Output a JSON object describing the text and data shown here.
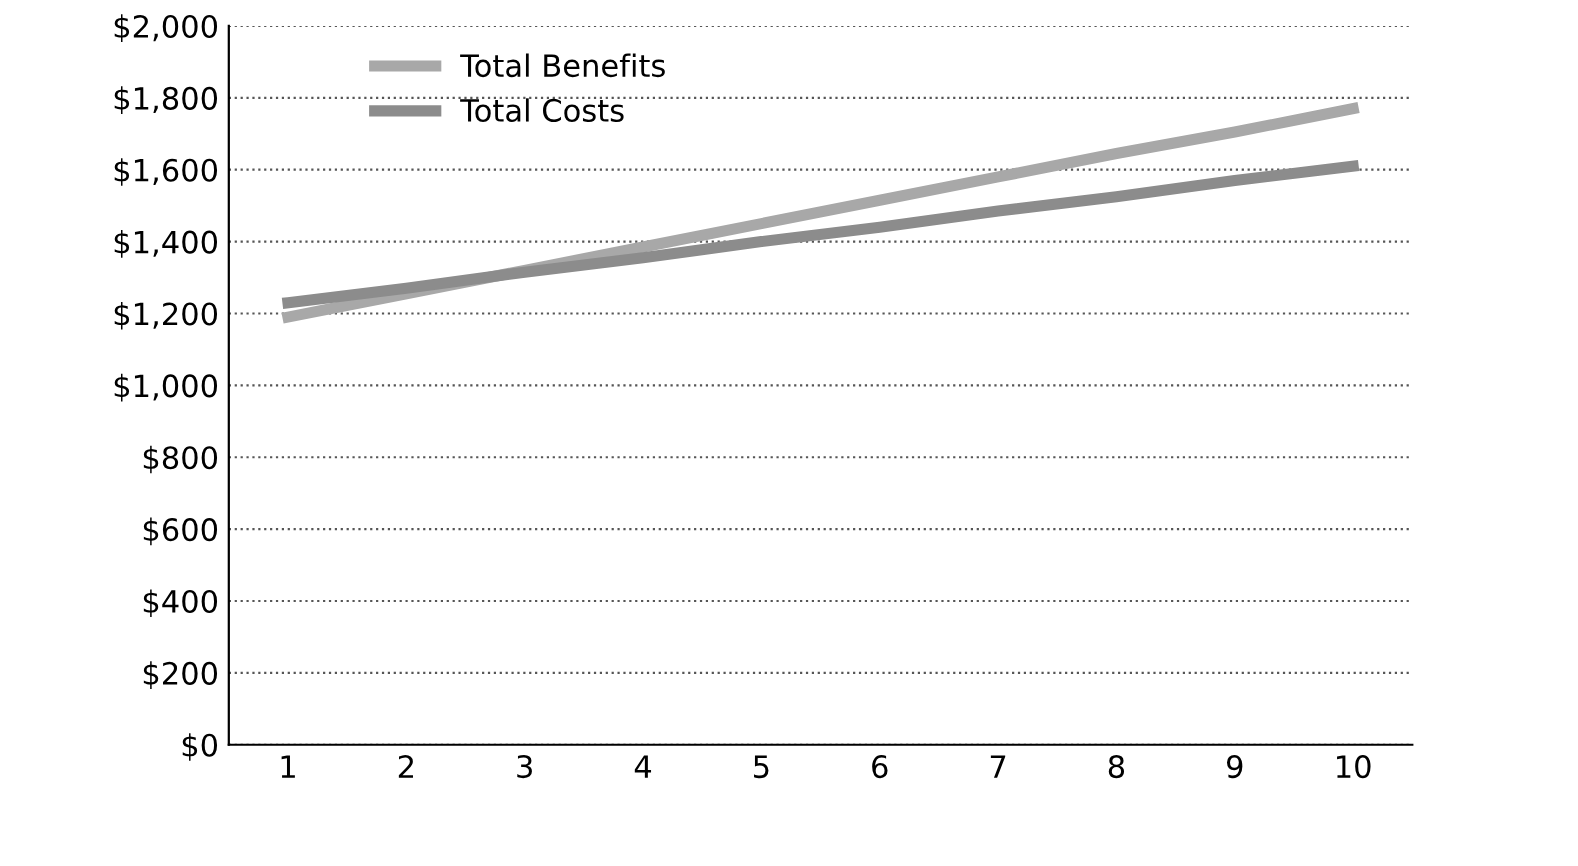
{
  "chart_data": {
    "type": "line",
    "categories": [
      "1",
      "2",
      "3",
      "4",
      "5",
      "6",
      "7",
      "8",
      "9",
      "10"
    ],
    "series": [
      {
        "name": "Total Benefits",
        "color": "#a8a8a8",
        "values": [
          1190,
          1255,
          1320,
          1385,
          1450,
          1515,
          1580,
          1645,
          1705,
          1770
        ]
      },
      {
        "name": "Total Costs",
        "color": "#8c8c8c",
        "values": [
          1230,
          1270,
          1315,
          1355,
          1400,
          1440,
          1485,
          1525,
          1570,
          1610
        ]
      }
    ],
    "ylim": [
      0,
      2000
    ],
    "yticks": [
      {
        "value": 0,
        "label": "$0"
      },
      {
        "value": 200,
        "label": "$200"
      },
      {
        "value": 400,
        "label": "$400"
      },
      {
        "value": 600,
        "label": "$600"
      },
      {
        "value": 800,
        "label": "$800"
      },
      {
        "value": 1000,
        "label": "$1,000"
      },
      {
        "value": 1200,
        "label": "$1,200"
      },
      {
        "value": 1400,
        "label": "$1,400"
      },
      {
        "value": 1600,
        "label": "$1,600"
      },
      {
        "value": 1800,
        "label": "$1,800"
      },
      {
        "value": 2000,
        "label": "$2,000"
      }
    ],
    "grid": "y",
    "legend": "top left",
    "marker": "none",
    "line_style": "solid"
  }
}
